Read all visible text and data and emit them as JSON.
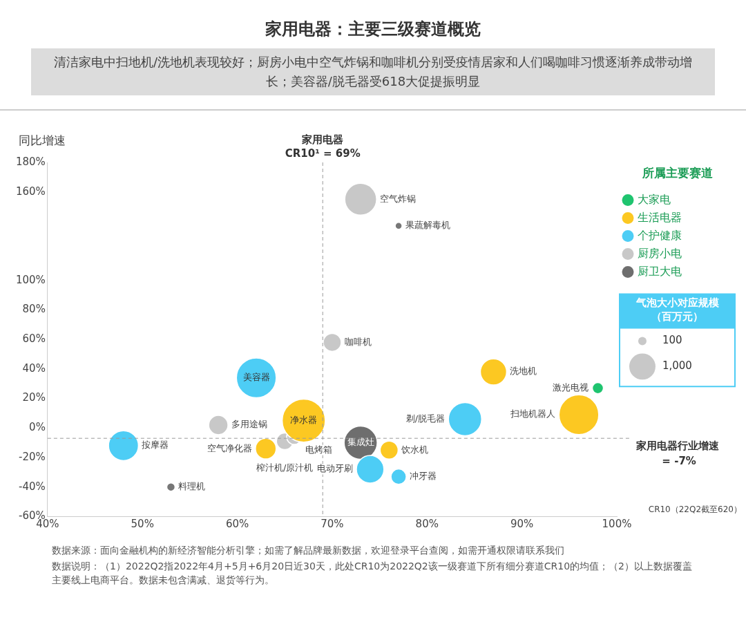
{
  "chart_data": {
    "type": "bubble",
    "title": "家用电器：主要三级赛道概览",
    "subtitle": "清洁家电中扫地机/洗地机表现较好；厨房小电中空气炸锅和咖啡机分别受疫情居家和人们喝咖啡习惯逐渐养成带动增长；美容器/脱毛器受618大促提振明显",
    "xlabel": "CR10（22Q2截至620）",
    "ylabel": "同比增速",
    "legend_title": "所属主要赛道",
    "legend": "top right",
    "size_legend": [
      100,
      {
        "value": 1000,
        "label": "1,000"
      }
    ],
    "xlim": [
      40,
      100
    ],
    "xticks": [
      {
        "value": 40,
        "label": "40%"
      },
      {
        "value": 50,
        "label": "50%"
      },
      {
        "value": 60,
        "label": "60%"
      },
      {
        "value": 70,
        "label": "70%"
      },
      {
        "value": 80,
        "label": "80%"
      },
      {
        "value": 90,
        "label": "90%"
      },
      {
        "value": 100,
        "label": "100%"
      }
    ],
    "ylim": [
      -60,
      180
    ],
    "yticks": [
      {
        "value": -60,
        "label": "-60%"
      },
      {
        "value": -40,
        "label": "-40%"
      },
      {
        "value": -20,
        "label": "-20%"
      },
      {
        "value": 0,
        "label": "0%"
      },
      {
        "value": 20,
        "label": "20%"
      },
      {
        "value": 40,
        "label": "40%"
      },
      {
        "value": 60,
        "label": "60%"
      },
      {
        "value": 80,
        "label": "80%"
      },
      {
        "value": 100,
        "label": "100%"
      },
      {
        "value": 160,
        "label": "160%"
      },
      {
        "value": 180,
        "label": "180%"
      }
    ],
    "series": [
      {
        "name": "大家电",
        "color": "#1fc46f",
        "x": [
          98
        ],
        "values": [
          27
        ],
        "sizes": [
          180
        ]
      },
      {
        "name": "生活电器",
        "color": "#fcc822",
        "x": [
          67,
          63,
          87,
          96,
          76
        ],
        "values": [
          5,
          -14,
          38,
          9,
          -15
        ],
        "sizes": [
          2700,
          620,
          1000,
          2300,
          470
        ]
      },
      {
        "name": "个护健康",
        "color": "#4dcdf5",
        "x": [
          62,
          48,
          84,
          74,
          77
        ],
        "values": [
          34,
          -12,
          6,
          -28,
          -33
        ],
        "sizes": [
          2300,
          1300,
          1600,
          1100,
          340
        ]
      },
      {
        "name": "厨房小电",
        "color": "#c8c8c8",
        "colors": [
          "#c8c8c8",
          "#c8c8c8",
          "#c8c8c8",
          "#c8c8c8",
          "#c8c8c8",
          "#777777",
          "#777777"
        ],
        "x": [
          58,
          65,
          66,
          70,
          73,
          53,
          77
        ],
        "values": [
          2,
          -9,
          -6,
          58,
          155,
          -40,
          137
        ],
        "sizes": [
          540,
          400,
          340,
          470,
          1470,
          100,
          70
        ]
      },
      {
        "name": "厨卫大电",
        "color": "#6e6e6e",
        "x": [
          73
        ],
        "values": [
          -10
        ],
        "sizes": [
          1600
        ]
      }
    ],
    "ref_lines": [
      {
        "axis": "x",
        "value": 69,
        "label": "家用电器CR10¹ = 69%",
        "color": "#999999",
        "line_style": "dashed"
      },
      {
        "axis": "y",
        "value": -7,
        "label": "家用电器行业增速 = -7%",
        "color": "#999999",
        "line_style": "dashed"
      }
    ],
    "annotations": [
      {
        "text": "激光电视",
        "x": 98,
        "y": 27
      },
      {
        "text": "净水器",
        "x": 67,
        "y": 5
      },
      {
        "text": "空气净化器",
        "x": 63,
        "y": -14
      },
      {
        "text": "洗地机",
        "x": 87,
        "y": 38
      },
      {
        "text": "扫地机器人",
        "x": 96,
        "y": 9
      },
      {
        "text": "饮水机",
        "x": 76,
        "y": -15
      },
      {
        "text": "美容器",
        "x": 62,
        "y": 34
      },
      {
        "text": "按摩器",
        "x": 48,
        "y": -12
      },
      {
        "text": "剃/脱毛器",
        "x": 84,
        "y": 6
      },
      {
        "text": "电动牙刷",
        "x": 74,
        "y": -28
      },
      {
        "text": "冲牙器",
        "x": 77,
        "y": -33
      },
      {
        "text": "多用途锅",
        "x": 58,
        "y": 2
      },
      {
        "text": "榨汁机/原汁机",
        "x": 65,
        "y": -9
      },
      {
        "text": "电烤箱",
        "x": 66,
        "y": -6
      },
      {
        "text": "咖啡机",
        "x": 70,
        "y": 58
      },
      {
        "text": "空气炸锅",
        "x": 73,
        "y": 155
      },
      {
        "text": "料理机",
        "x": 53,
        "y": -40
      },
      {
        "text": "果蔬解毒机",
        "x": 77,
        "y": 137
      },
      {
        "text": "集成灶",
        "x": 73,
        "y": -10
      },
      "气泡大小对应规模（百万元）",
      "数据来源：面向金融机构的新经济智能分析引擎；如需了解品牌最新数据，欢迎登录平台查阅，如需开通权限请联系我们",
      "数据说明：（1）2022Q2指2022年4月+5月+6月20日近30天，此处CR10为2022Q2该一级赛道下所有细分赛道CR10的均值；（2）以上数据覆盖主要线上电商平台。数据未包含满减、退货等行为。"
    ]
  }
}
